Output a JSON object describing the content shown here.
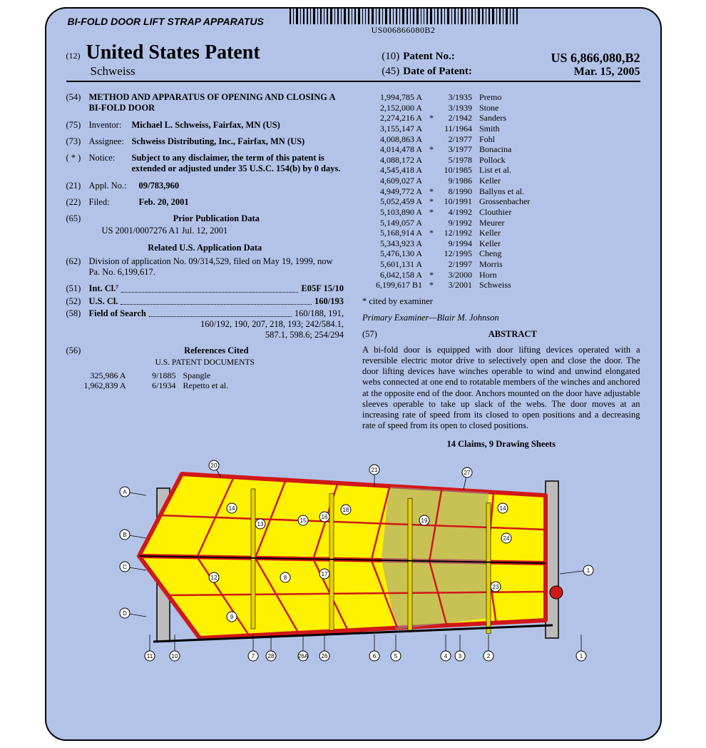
{
  "header": {
    "product_title": "BI-FOLD DOOR LIFT STRAP APPARATUS",
    "barcode_text": "US006866080B2",
    "code12": "(12)",
    "usp_title": "United States Patent",
    "inventor_surname": "Schweiss",
    "code10": "(10)",
    "patent_no_label": "Patent No.:",
    "patent_no": "US 6,866,080,B2",
    "code45": "(45)",
    "date_label": "Date of Patent:",
    "date_value": "Mar. 15, 2005"
  },
  "left": {
    "c54": "(54)",
    "title54": "METHOD AND APPARATUS OF OPENING AND CLOSING A BI-FOLD DOOR",
    "c75": "(75)",
    "lbl75": "Inventor:",
    "val75": "Michael L. Schweiss, Fairfax, MN (US)",
    "c73": "(73)",
    "lbl73": "Assignee:",
    "val73": "Schweiss Distributing, Inc., Fairfax, MN (US)",
    "cstar": "( * )",
    "lblstar": "Notice:",
    "valstar": "Subject to any disclaimer, the term of this patent is extended or adjusted under 35 U.S.C. 154(b) by 0 days.",
    "c21": "(21)",
    "lbl21": "Appl. No.:",
    "val21": "09/783,960",
    "c22": "(22)",
    "lbl22": "Filed:",
    "val22": "Feb. 20, 2001",
    "c65": "(65)",
    "heading65": "Prior Publication Data",
    "val65": "US 2001/0007276 A1 Jul. 12, 2001",
    "related_heading": "Related U.S. Application Data",
    "c62": "(62)",
    "val62": "Division of application No. 09/314,529, filed on May 19, 1999, now Pa. No. 6,199,617.",
    "c51": "(51)",
    "lbl51": "Int. Cl.⁷",
    "val51": "E05F 15/10",
    "c52": "(52)",
    "lbl52": "U.S. Cl.",
    "val52": "160/193",
    "c58": "(58)",
    "lbl58": "Field of Search",
    "val58": "160/188, 191, 160/192, 190, 207, 218, 193; 242/584.1, 587.1, 598.6; 254/294",
    "c56": "(56)",
    "heading56": "References Cited",
    "usdocs_heading": "U.S. PATENT DOCUMENTS",
    "refs_left": [
      {
        "no": "325,986 A",
        "star": "",
        "date": "9/1885",
        "name": "Spangle"
      },
      {
        "no": "1,962,839 A",
        "star": "",
        "date": "6/1934",
        "name": "Repetto et al."
      }
    ]
  },
  "right": {
    "refs": [
      {
        "no": "1,994,785 A",
        "star": "",
        "date": "3/1935",
        "name": "Premo"
      },
      {
        "no": "2,152,000 A",
        "star": "",
        "date": "3/1939",
        "name": "Stone"
      },
      {
        "no": "2,274,216 A",
        "star": "*",
        "date": "2/1942",
        "name": "Sanders"
      },
      {
        "no": "3,155,147 A",
        "star": "",
        "date": "11/1964",
        "name": "Smith"
      },
      {
        "no": "4,008,863 A",
        "star": "",
        "date": "2/1977",
        "name": "Fohl"
      },
      {
        "no": "4,014,478 A",
        "star": "*",
        "date": "3/1977",
        "name": "Bonacina"
      },
      {
        "no": "4,088,172 A",
        "star": "",
        "date": "5/1978",
        "name": "Pollock"
      },
      {
        "no": "4,545,418 A",
        "star": "",
        "date": "10/1985",
        "name": "List et al."
      },
      {
        "no": "4,609,027 A",
        "star": "",
        "date": "9/1986",
        "name": "Keller"
      },
      {
        "no": "4,949,772 A",
        "star": "*",
        "date": "8/1990",
        "name": "Ballyns et al."
      },
      {
        "no": "5,052,459 A",
        "star": "*",
        "date": "10/1991",
        "name": "Grossenbacher"
      },
      {
        "no": "5,103,890 A",
        "star": "*",
        "date": "4/1992",
        "name": "Clouthier"
      },
      {
        "no": "5,149,057 A",
        "star": "",
        "date": "9/1992",
        "name": "Meurer"
      },
      {
        "no": "5,168,914 A",
        "star": "*",
        "date": "12/1992",
        "name": "Keller"
      },
      {
        "no": "5,343,923 A",
        "star": "",
        "date": "9/1994",
        "name": "Keller"
      },
      {
        "no": "5,476,130 A",
        "star": "",
        "date": "12/1995",
        "name": "Cheng"
      },
      {
        "no": "5,601,131 A",
        "star": "",
        "date": "2/1997",
        "name": "Morris"
      },
      {
        "no": "6,042,158 A",
        "star": "*",
        "date": "3/2000",
        "name": "Horn"
      },
      {
        "no": "6,199,617 B1",
        "star": "*",
        "date": "3/2001",
        "name": "Schweiss"
      }
    ],
    "cited_note": "* cited by examiner",
    "examiner_label": "Primary Examiner—",
    "examiner_name": "Blair M. Johnson",
    "c57": "(57)",
    "abstract_heading": "ABSTRACT",
    "abstract_text": "A bi-fold door is equipped with door lifting devices operated with a reversible electric motor drive to selectively open and close the door. The door lifting devices have winches operable to wind and unwind elongated webs connected at one end to rotatable members of the winches and anchored at the opposite end of the door. Anchors mounted on the door have adjustable sleeves operable to take up slack of the webs. The door moves at an increasing rate of speed from its closed to open positions and a decreasing rate of speed from its open to closed positions.",
    "claims_line": "14 Claims, 9 Drawing Sheets"
  },
  "figure": {
    "colors": {
      "frame": "#d01818",
      "panel": "#fff200",
      "shade": "#9a9a9a",
      "line": "#000000",
      "support": "#bcbcbc"
    },
    "callouts_top": [
      "20",
      "21",
      "27"
    ],
    "callouts_side": [
      "A",
      "B",
      "C",
      "D"
    ],
    "callouts_inner": [
      "14",
      "13",
      "15",
      "16",
      "18",
      "19",
      "14",
      "24",
      "12",
      "8",
      "17",
      "23",
      "9"
    ],
    "callouts_bottom": [
      "11",
      "10",
      "28",
      "26A",
      "26",
      "6",
      "5",
      "3",
      "2",
      "4",
      "1",
      "7"
    ]
  }
}
